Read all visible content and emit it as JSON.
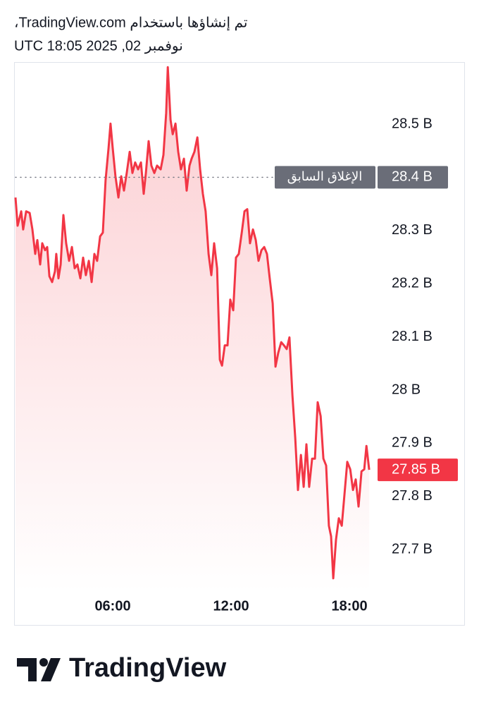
{
  "header": {
    "credit": "تم إنشاؤها باستخدام TradingView.com،",
    "timestamp": "نوفمبر 02, 2025 18:05 UTC"
  },
  "chart_data": {
    "type": "area",
    "color": "#f23645",
    "x": [
      1.07,
      1.18,
      1.36,
      1.46,
      1.61,
      1.79,
      1.93,
      2.07,
      2.18,
      2.32,
      2.43,
      2.57,
      2.68,
      2.79,
      2.93,
      3.07,
      3.14,
      3.25,
      3.36,
      3.5,
      3.64,
      3.79,
      3.93,
      4.07,
      4.21,
      4.36,
      4.5,
      4.64,
      4.79,
      4.93,
      5.07,
      5.21,
      5.36,
      5.5,
      5.64,
      5.79,
      5.89,
      6,
      6.14,
      6.29,
      6.43,
      6.57,
      6.71,
      6.86,
      7,
      7.14,
      7.29,
      7.43,
      7.57,
      7.68,
      7.82,
      7.96,
      8.11,
      8.25,
      8.43,
      8.57,
      8.71,
      8.79,
      8.93,
      9.04,
      9.18,
      9.32,
      9.46,
      9.61,
      9.75,
      9.89,
      10,
      10.14,
      10.29,
      10.43,
      10.57,
      10.71,
      10.86,
      11,
      11.14,
      11.29,
      11.43,
      11.54,
      11.68,
      11.82,
      11.96,
      12.11,
      12.25,
      12.39,
      12.54,
      12.68,
      12.82,
      12.96,
      13.11,
      13.25,
      13.39,
      13.54,
      13.68,
      13.82,
      13.96,
      14.11,
      14.25,
      14.39,
      14.54,
      14.68,
      14.82,
      14.96,
      15.11,
      15.25,
      15.39,
      15.54,
      15.68,
      15.82,
      15.96,
      16.11,
      16.25,
      16.39,
      16.54,
      16.68,
      16.82,
      16.96,
      17.07,
      17.18,
      17.32,
      17.46,
      17.61,
      17.75,
      17.89,
      18.04,
      18.18,
      18.32,
      18.46,
      18.61,
      18.75,
      18.86,
      19
    ],
    "values": [
      28.362,
      28.309,
      28.336,
      28.302,
      28.336,
      28.333,
      28.302,
      28.256,
      28.282,
      28.236,
      28.276,
      28.263,
      28.269,
      28.214,
      28.203,
      28.223,
      28.256,
      28.21,
      28.236,
      28.329,
      28.276,
      28.243,
      28.269,
      28.229,
      28.236,
      28.21,
      28.249,
      28.216,
      28.243,
      28.203,
      28.256,
      28.243,
      28.289,
      28.296,
      28.395,
      28.455,
      28.501,
      28.455,
      28.402,
      28.362,
      28.402,
      28.375,
      28.408,
      28.448,
      28.408,
      28.428,
      28.415,
      28.428,
      28.369,
      28.408,
      28.468,
      28.422,
      28.408,
      28.422,
      28.415,
      28.442,
      28.521,
      28.607,
      28.508,
      28.481,
      28.501,
      28.448,
      28.415,
      28.435,
      28.375,
      28.422,
      28.435,
      28.448,
      28.475,
      28.415,
      28.369,
      28.336,
      28.256,
      28.216,
      28.276,
      28.229,
      28.057,
      28.046,
      28.084,
      28.084,
      28.17,
      28.15,
      28.249,
      28.256,
      28.296,
      28.336,
      28.34,
      28.276,
      28.302,
      28.282,
      28.243,
      28.263,
      28.269,
      28.256,
      28.21,
      28.163,
      28.044,
      28.07,
      28.09,
      28.084,
      28.077,
      28.099,
      27.991,
      27.911,
      27.812,
      27.878,
      27.818,
      27.898,
      27.818,
      27.871,
      27.871,
      27.977,
      27.951,
      27.871,
      27.858,
      27.745,
      27.725,
      27.646,
      27.719,
      27.759,
      27.745,
      27.805,
      27.865,
      27.851,
      27.812,
      27.832,
      27.781,
      27.847,
      27.851,
      27.895,
      27.85
    ],
    "xlim": [
      1,
      19.39
    ],
    "xticks": [
      {
        "value": 6,
        "label": "06:00"
      },
      {
        "value": 12,
        "label": "12:00"
      },
      {
        "value": 18,
        "label": "18:00"
      }
    ],
    "ylim": [
      27.62,
      28.62
    ],
    "yticks": [
      {
        "value": 27.7,
        "label": "27.7 B"
      },
      {
        "value": 27.8,
        "label": "27.8 B"
      },
      {
        "value": 27.9,
        "label": "27.9 B"
      },
      {
        "value": 28,
        "label": "28 B"
      },
      {
        "value": 28.1,
        "label": "28.1 B"
      },
      {
        "value": 28.2,
        "label": "28.2 B"
      },
      {
        "value": 28.3,
        "label": "28.3 B"
      },
      {
        "value": 28.5,
        "label": "28.5 B"
      }
    ],
    "previous_close": {
      "value": 28.4,
      "label": "الإغلاق السابق",
      "value_label": "28.4 B",
      "color": "#6a6d78"
    },
    "last_price": {
      "value": 27.85,
      "label": "27.85 B",
      "color": "#f23645"
    }
  },
  "footer": {
    "logo_text": "TradingView"
  }
}
